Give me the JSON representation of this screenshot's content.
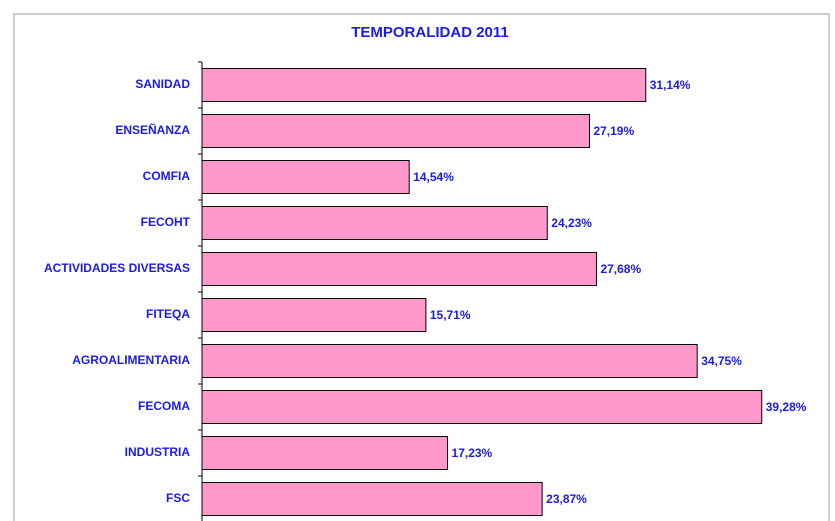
{
  "chart_data": {
    "type": "barh",
    "title": "TEMPORALIDAD 2011",
    "categories": [
      "SANIDAD",
      "ENSEÑANZA",
      "COMFIA",
      "FECOHT",
      "ACTIVIDADES DIVERSAS",
      "FITEQA",
      "AGROALIMENTARIA",
      "FECOMA",
      "INDUSTRIA",
      "FSC"
    ],
    "values": [
      31.14,
      27.19,
      14.54,
      24.23,
      27.68,
      15.71,
      34.75,
      39.28,
      17.23,
      23.87
    ],
    "value_labels": [
      "31,14%",
      "27,19%",
      "14,54%",
      "24,23%",
      "27,68%",
      "15,71%",
      "34,75%",
      "39,28%",
      "17,23%",
      "23,87%"
    ],
    "color": "#ff99cc",
    "xlim": [
      0,
      44
    ]
  }
}
